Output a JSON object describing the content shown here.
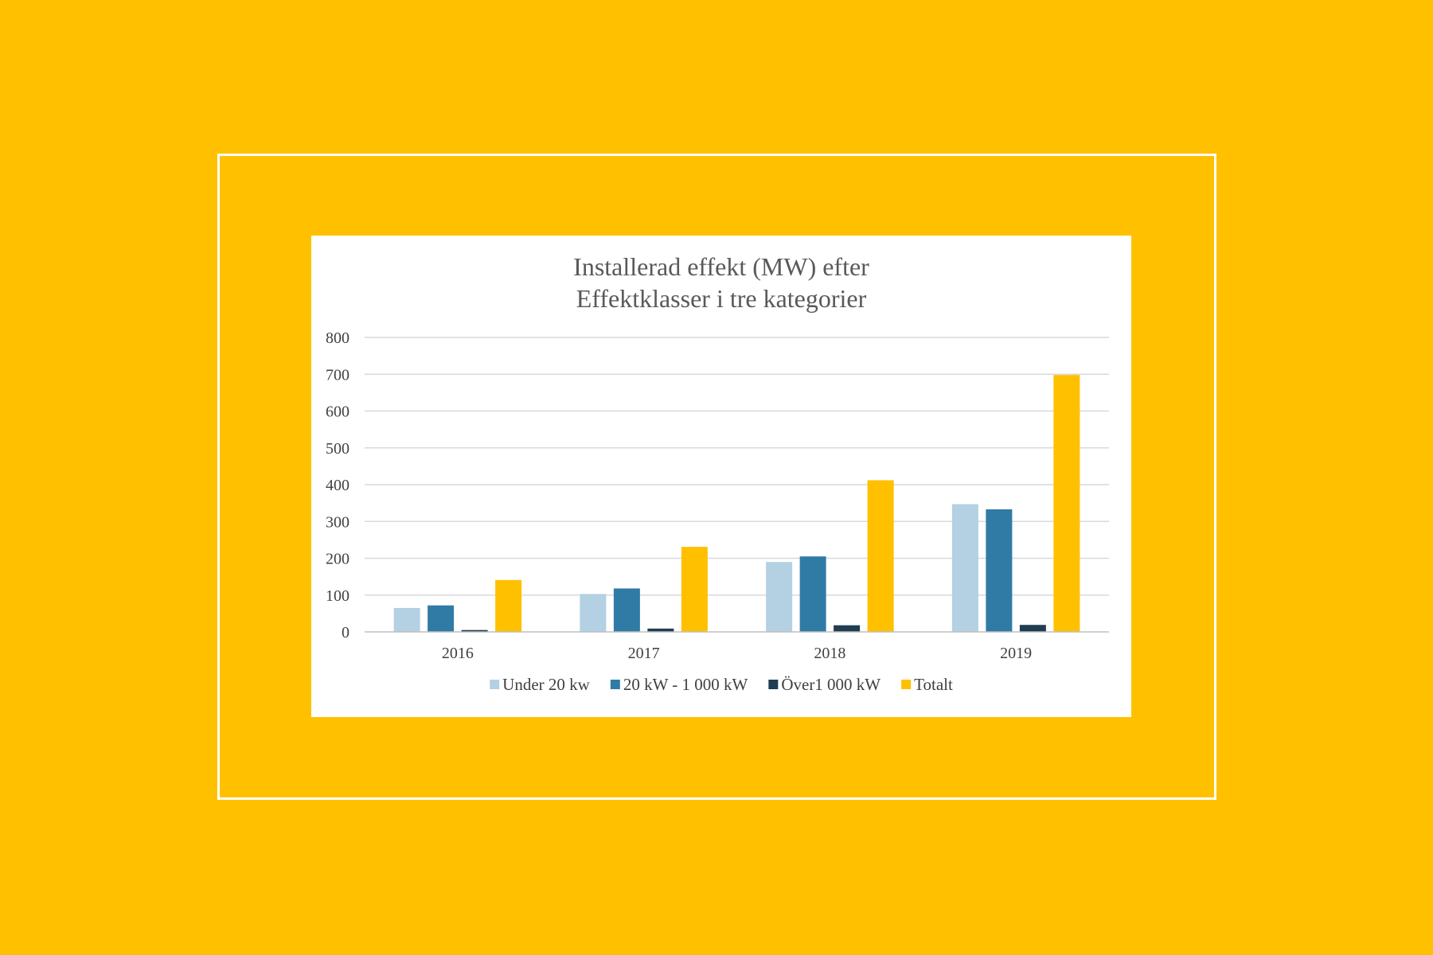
{
  "page": {
    "background_color": "#FFC000",
    "frame_color": "#FFFFFF",
    "card_color": "#FFFFFF"
  },
  "chart_data": {
    "type": "bar",
    "title": "Installerad effekt (MW) efter\nEffektklasser i tre kategorier",
    "title_lines": [
      "Installerad effekt (MW) efter",
      "Effektklasser i tre kategorier"
    ],
    "xlabel": "",
    "ylabel": "",
    "categories": [
      "2016",
      "2017",
      "2018",
      "2019"
    ],
    "ylim": [
      0,
      800
    ],
    "yticks": [
      0,
      100,
      200,
      300,
      400,
      500,
      600,
      700,
      800
    ],
    "grid": true,
    "legend_position": "bottom",
    "series": [
      {
        "name": "Under 20 kw",
        "color": "#B4D0E3",
        "values": [
          65,
          103,
          190,
          347
        ]
      },
      {
        "name": "20 kW - 1 000 kW",
        "color": "#307BA5",
        "values": [
          72,
          118,
          205,
          333
        ]
      },
      {
        "name": "Över1 000 kW",
        "color": "#203D51",
        "values": [
          5,
          9,
          18,
          19
        ]
      },
      {
        "name": "Totalt",
        "color": "#FFC000",
        "values": [
          141,
          231,
          412,
          698
        ]
      }
    ]
  }
}
